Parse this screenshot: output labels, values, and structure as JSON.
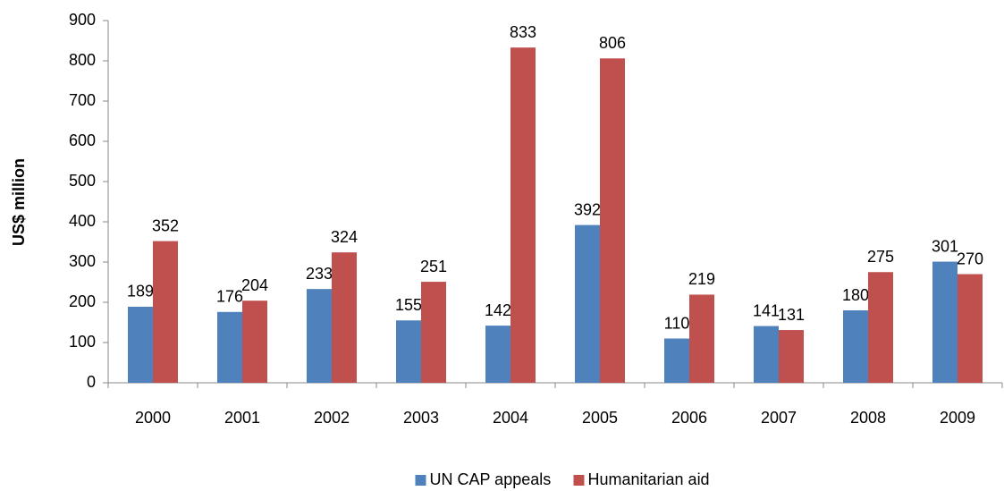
{
  "chart_data": {
    "type": "bar",
    "y_label": "US$ million",
    "categories": [
      "2000",
      "2001",
      "2002",
      "2003",
      "2004",
      "2005",
      "2006",
      "2007",
      "2008",
      "2009"
    ],
    "series": [
      {
        "name": "UN CAP appeals",
        "color": "#4f81bd",
        "values": [
          189,
          176,
          233,
          155,
          142,
          392,
          110,
          141,
          180,
          301
        ]
      },
      {
        "name": "Humanitarian aid",
        "color": "#c0504d",
        "values": [
          352,
          204,
          324,
          251,
          833,
          806,
          219,
          131,
          275,
          270
        ]
      }
    ],
    "ylim": [
      0,
      900
    ],
    "yticks": [
      0,
      100,
      200,
      300,
      400,
      500,
      600,
      700,
      800,
      900
    ],
    "grid": false,
    "legend": "bottom"
  }
}
